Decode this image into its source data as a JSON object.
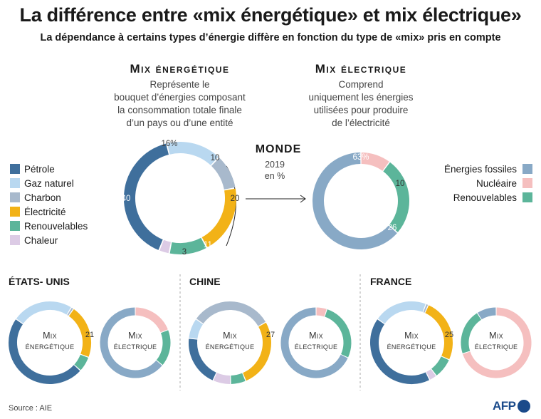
{
  "title": "La différence entre «mix énergétique» et mix électrique»",
  "subtitle": "La dépendance à certains types d’énergie diffère en fonction du type de «mix» pris en compte",
  "energy_section": {
    "heading": "Mix énergétique",
    "description": [
      "Représente le",
      "bouquet d’énergies composant",
      "la consommation totale finale",
      "d’un pays ou d’une entité"
    ]
  },
  "electric_section": {
    "heading": "Mix électrique",
    "description": [
      "Comprend",
      "uniquement les énergies",
      "utilisées pour produire",
      "de l’électricité"
    ]
  },
  "world": {
    "label": "MONDE",
    "year": "2019",
    "unit": "en %"
  },
  "legend_energy": [
    {
      "label": "Pétrole",
      "color": "#3f6f9c"
    },
    {
      "label": "Gaz naturel",
      "color": "#b9d8f0"
    },
    {
      "label": "Charbon",
      "color": "#a8b9cc"
    },
    {
      "label": "Électricité",
      "color": "#f2b217"
    },
    {
      "label": "Renouvelables",
      "color": "#5cb59a"
    },
    {
      "label": "Chaleur",
      "color": "#dccbe5"
    }
  ],
  "legend_electric": [
    {
      "label": "Énergies fossiles",
      "color": "#88a9c6"
    },
    {
      "label": "Nucléaire",
      "color": "#f5bfbf"
    },
    {
      "label": "Renouvelables",
      "color": "#5cb59a"
    }
  ],
  "chart_data": [
    {
      "type": "pie",
      "id": "world-energy",
      "categories": [
        "Gaz naturel",
        "Charbon",
        "Électricité",
        "Renouvelables",
        "Chaleur",
        "Pétrole"
      ],
      "values": [
        16,
        10,
        20,
        11,
        3,
        40
      ],
      "labels": [
        "16%",
        "10",
        "20",
        "11",
        "3",
        "40"
      ]
    },
    {
      "type": "pie",
      "id": "world-electric",
      "categories": [
        "Nucléaire",
        "Renouvelables",
        "Énergies fossiles"
      ],
      "values": [
        10,
        26,
        63
      ],
      "labels": [
        "10",
        "26",
        "63%"
      ]
    },
    {
      "type": "pie",
      "id": "us-energy",
      "categories": [
        "Gaz naturel",
        "Charbon",
        "Électricité",
        "Renouvelables",
        "Chaleur",
        "Pétrole"
      ],
      "values": [
        24,
        1,
        21,
        6,
        0,
        48
      ],
      "labels": [
        "",
        "",
        "21",
        "",
        "",
        ""
      ]
    },
    {
      "type": "pie",
      "id": "us-electric",
      "categories": [
        "Nucléaire",
        "Renouvelables",
        "Énergies fossiles"
      ],
      "values": [
        19,
        17,
        64
      ],
      "labels": [
        "",
        "",
        ""
      ]
    },
    {
      "type": "pie",
      "id": "china-energy",
      "categories": [
        "Charbon",
        "Électricité",
        "Renouvelables",
        "Chaleur",
        "Pétrole",
        "Gaz naturel"
      ],
      "values": [
        32,
        27,
        6,
        7,
        20,
        8
      ],
      "labels": [
        "",
        "27",
        "",
        "",
        "",
        ""
      ]
    },
    {
      "type": "pie",
      "id": "china-electric",
      "categories": [
        "Nucléaire",
        "Renouvelables",
        "Énergies fossiles"
      ],
      "values": [
        5,
        27,
        68
      ],
      "labels": [
        "",
        "",
        ""
      ]
    },
    {
      "type": "pie",
      "id": "france-energy",
      "categories": [
        "Gaz naturel",
        "Charbon",
        "Électricité",
        "Renouvelables",
        "Chaleur",
        "Pétrole"
      ],
      "values": [
        21,
        1,
        25,
        8,
        3,
        42
      ],
      "labels": [
        "",
        "",
        "25",
        "",
        "",
        ""
      ]
    },
    {
      "type": "pie",
      "id": "france-electric",
      "categories": [
        "Nucléaire",
        "Renouvelables",
        "Énergies fossiles"
      ],
      "values": [
        70,
        21,
        9
      ],
      "labels": [
        "",
        "",
        ""
      ]
    }
  ],
  "countries": [
    {
      "name": "ÉTATS- UNIS"
    },
    {
      "name": "CHINE"
    },
    {
      "name": "FRANCE"
    }
  ],
  "mini_labels": {
    "energy": [
      "Mix",
      "énergétique"
    ],
    "electric": [
      "Mix",
      "électrique"
    ]
  },
  "source": "Source : AIE",
  "logo": "AFP"
}
